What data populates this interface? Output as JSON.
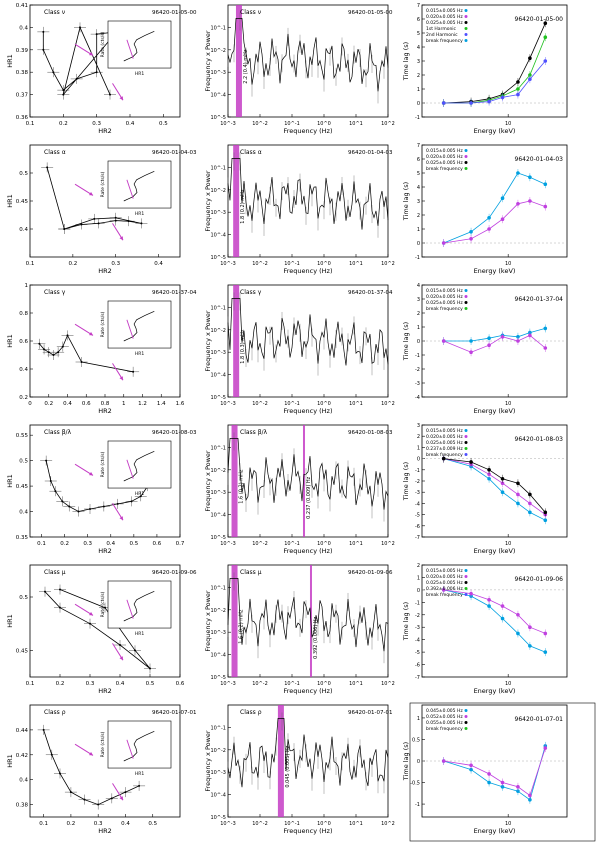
{
  "figure": {
    "col_labels": {
      "hr_x": "HR2",
      "hr_y": "HR1",
      "psd_x": "Frequency (Hz)",
      "psd_y": "Frequency x Power",
      "lag_x": "Energy (keV)",
      "lag_y": "Time lag (s)",
      "inset_y": "Rate (cts/s)",
      "inset_x": "HR1"
    },
    "rows": [
      {
        "obs": "96420-01-05-00",
        "class": "Class ν",
        "qpo_label": "2.2 (0.4) mHz",
        "lag_legend": [
          "0.015±0.005 Hz",
          "0.020±0.005 Hz",
          "0.025±0.005 Hz",
          "1st Harmonic",
          "2nd Harmonic",
          "break frequency"
        ]
      },
      {
        "obs": "96420-01-04-03",
        "class": "Class α",
        "qpo_label": "1.8 (0.2) mHz",
        "lag_legend": [
          "0.015±0.005 Hz",
          "0.020±0.005 Hz",
          "0.025±0.005 Hz",
          "break frequency"
        ]
      },
      {
        "obs": "96420-01-37-04",
        "class": "Class γ",
        "qpo_label": "1.8 (0.3) mHz",
        "lag_legend": [
          "0.015±0.005 Hz",
          "0.020±0.005 Hz",
          "0.025±0.005 Hz",
          "break frequency"
        ]
      },
      {
        "obs": "96420-01-08-03",
        "class": "Class β/λ",
        "qpo_label": "1.6 (0.2) mHz",
        "qpo2_label": "0.237 (0.009) Hz",
        "lag_legend": [
          "0.015±0.005 Hz",
          "0.020±0.005 Hz",
          "0.025±0.005 Hz",
          "0.237±0.009 Hz",
          "break frequency"
        ]
      },
      {
        "obs": "96420-01-09-06",
        "class": "Class μ",
        "qpo_label": "1.6 (0.2) mHz",
        "qpo2_label": "0.392 (0.006) Hz",
        "lag_legend": [
          "0.015±0.005 Hz",
          "0.020±0.005 Hz",
          "0.025±0.005 Hz",
          "0.392±0.006 Hz",
          "break frequency"
        ]
      },
      {
        "obs": "96420-01-07-01",
        "class": "Class ρ",
        "qpo_label": "0.045 (0.005) Hz",
        "lag_legend": [
          "0.045±0.005 Hz",
          "0.052±0.005 Hz",
          "0.055±0.005 Hz",
          "break frequency"
        ]
      }
    ]
  },
  "chart_data": [
    {
      "panel": "hr-ν",
      "type": "line",
      "title": "Class ν",
      "xlabel": "HR2",
      "ylabel": "HR1",
      "xlim": [
        0.1,
        0.55
      ],
      "ylim": [
        0.36,
        0.41
      ],
      "x_ticks": [
        0.1,
        0.2,
        0.3,
        0.4,
        0.5
      ],
      "y_ticks": [
        0.36,
        0.37,
        0.38,
        0.39,
        0.4,
        0.41
      ],
      "x": [
        0.14,
        0.14,
        0.17,
        0.2,
        0.24,
        0.3,
        0.3,
        0.36,
        0.2,
        0.25,
        0.34
      ],
      "y": [
        0.398,
        0.39,
        0.38,
        0.372,
        0.377,
        0.38,
        0.397,
        0.398,
        0.37,
        0.4,
        0.37
      ]
    },
    {
      "panel": "hr-α",
      "type": "line",
      "title": "Class α",
      "xlabel": "HR2",
      "ylabel": "HR1",
      "xlim": [
        0.1,
        0.45
      ],
      "ylim": [
        0.35,
        0.55
      ],
      "x_ticks": [
        0.1,
        0.2,
        0.3,
        0.4
      ],
      "y_ticks": [
        0.4,
        0.45,
        0.5
      ],
      "x": [
        0.14,
        0.18,
        0.22,
        0.26,
        0.3,
        0.33,
        0.36,
        0.3,
        0.25,
        0.18
      ],
      "y": [
        0.51,
        0.4,
        0.408,
        0.41,
        0.415,
        0.414,
        0.41,
        0.42,
        0.418,
        0.4
      ]
    },
    {
      "panel": "hr-γ",
      "type": "line",
      "title": "Class γ",
      "xlabel": "HR2",
      "ylabel": "HR1",
      "xlim": [
        0,
        1.6
      ],
      "ylim": [
        0.2,
        1
      ],
      "x_ticks": [
        0,
        0.2,
        0.4,
        0.6,
        0.8,
        1,
        1.2,
        1.4,
        1.6
      ],
      "y_ticks": [
        0.2,
        0.4,
        0.6,
        0.8,
        1
      ],
      "x": [
        0.1,
        0.15,
        0.2,
        0.25,
        0.3,
        0.35,
        0.4,
        0.55,
        1.1
      ],
      "y": [
        0.58,
        0.54,
        0.52,
        0.5,
        0.52,
        0.56,
        0.64,
        0.45,
        0.38
      ]
    },
    {
      "panel": "hr-β/λ",
      "type": "line",
      "title": "Class β/λ",
      "xlabel": "HR2",
      "ylabel": "HR1",
      "xlim": [
        0.05,
        0.7
      ],
      "ylim": [
        0.35,
        0.57
      ],
      "x_ticks": [
        0.1,
        0.2,
        0.3,
        0.4,
        0.5,
        0.6,
        0.7
      ],
      "y_ticks": [
        0.35,
        0.4,
        0.45,
        0.5,
        0.55
      ],
      "x": [
        0.12,
        0.14,
        0.16,
        0.19,
        0.22,
        0.26,
        0.31,
        0.37,
        0.43,
        0.49,
        0.53,
        0.56
      ],
      "y": [
        0.5,
        0.46,
        0.44,
        0.42,
        0.41,
        0.4,
        0.405,
        0.41,
        0.415,
        0.42,
        0.43,
        0.45
      ]
    },
    {
      "panel": "hr-μ",
      "type": "line",
      "title": "Class μ",
      "xlabel": "HR2",
      "ylabel": "HR1",
      "xlim": [
        0.1,
        0.6
      ],
      "ylim": [
        0.425,
        0.53
      ],
      "x_ticks": [
        0.1,
        0.2,
        0.3,
        0.4,
        0.5,
        0.6
      ],
      "y_ticks": [
        0.45,
        0.5
      ],
      "x": [
        0.15,
        0.2,
        0.3,
        0.4,
        0.5,
        0.45,
        0.35,
        0.2
      ],
      "y": [
        0.505,
        0.49,
        0.475,
        0.455,
        0.433,
        0.45,
        0.49,
        0.507
      ]
    },
    {
      "panel": "hr-ρ",
      "type": "line",
      "title": "Class ρ",
      "xlabel": "HR2",
      "ylabel": "HR1",
      "xlim": [
        0.05,
        0.6
      ],
      "ylim": [
        0.37,
        0.46
      ],
      "x_ticks": [
        0.1,
        0.2,
        0.3,
        0.4,
        0.5
      ],
      "y_ticks": [
        0.38,
        0.4,
        0.42,
        0.44
      ],
      "x": [
        0.1,
        0.13,
        0.16,
        0.2,
        0.25,
        0.3,
        0.35,
        0.4,
        0.45
      ],
      "y": [
        0.44,
        0.42,
        0.405,
        0.39,
        0.384,
        0.38,
        0.385,
        0.39,
        0.395
      ]
    },
    {
      "panel": "psd-all",
      "type": "line",
      "xlabel": "Frequency (Hz)",
      "ylabel": "Frequency x Power",
      "x_log": true,
      "xlim": [
        0.001,
        100
      ],
      "ylim_log": [
        1e-05,
        1
      ],
      "x_ticks": [
        0.001,
        0.01,
        0.1,
        1,
        10,
        100
      ],
      "y_ticks": [
        1e-05,
        0.0001,
        0.001,
        0.01,
        0.1
      ],
      "qpo_hz": [
        0.0022,
        0.0018,
        0.0018,
        0.0016,
        0.0016,
        0.045
      ],
      "qpo2_hz": [
        null,
        null,
        null,
        0.237,
        0.392,
        null
      ]
    },
    {
      "panel": "lag-ν",
      "type": "line",
      "xlabel": "Energy (keV)",
      "ylabel": "Time lag (s)",
      "xlim": [
        2,
        30
      ],
      "ylim": [
        -1,
        7
      ],
      "x_ticks": [
        10
      ],
      "x": [
        3,
        5,
        7,
        9,
        12,
        15,
        20
      ],
      "series": [
        {
          "name": "0.025±0.005 Hz",
          "values": [
            0,
            0.1,
            0.3,
            0.6,
            1.5,
            3.2,
            5.7
          ]
        },
        {
          "name": "0.020±0.005 Hz",
          "values": [
            0,
            0,
            0.2,
            0.5,
            1,
            2,
            4.7
          ]
        },
        {
          "name": "0.015±0.005 Hz",
          "values": [
            0,
            0,
            0.1,
            0.4,
            0.6,
            1.7,
            3
          ]
        }
      ]
    },
    {
      "panel": "lag-α",
      "type": "line",
      "xlabel": "Energy (keV)",
      "ylabel": "Time lag (s)",
      "xlim": [
        2,
        30
      ],
      "ylim": [
        -1,
        7
      ],
      "x_ticks": [
        10
      ],
      "x": [
        3,
        5,
        7,
        9,
        12,
        15,
        20
      ],
      "series": [
        {
          "name": "0.025±0.005 Hz",
          "values": [
            0,
            0.8,
            1.8,
            3.2,
            5,
            4.7,
            4.2
          ]
        },
        {
          "name": "0.020±0.005 Hz",
          "values": [
            0,
            0.3,
            1,
            1.7,
            2.8,
            3,
            2.6
          ]
        }
      ]
    },
    {
      "panel": "lag-γ",
      "type": "line",
      "xlabel": "Energy (keV)",
      "ylabel": "Time lag (s)",
      "xlim": [
        2,
        30
      ],
      "ylim": [
        -4,
        4
      ],
      "x_ticks": [
        10
      ],
      "x": [
        3,
        5,
        7,
        9,
        12,
        15,
        20
      ],
      "series": [
        {
          "name": "0.025±0.005 Hz",
          "values": [
            0,
            0,
            0.2,
            0.4,
            0.3,
            0.6,
            0.9
          ]
        },
        {
          "name": "0.015±0.005 Hz",
          "values": [
            0,
            -0.8,
            -0.3,
            0.3,
            0,
            0.4,
            -0.5
          ]
        }
      ]
    },
    {
      "panel": "lag-β/λ",
      "type": "line",
      "xlabel": "Energy (keV)",
      "ylabel": "Time lag (s)",
      "xlim": [
        2,
        30
      ],
      "ylim": [
        -7,
        3
      ],
      "x_ticks": [
        10
      ],
      "x": [
        3,
        5,
        7,
        9,
        12,
        15,
        20
      ],
      "series": [
        {
          "name": "0.025±0.005 Hz",
          "values": [
            0,
            -0.7,
            -1.8,
            -3,
            -4,
            -4.8,
            -5.5
          ]
        },
        {
          "name": "0.020±0.005 Hz",
          "values": [
            0,
            -0.5,
            -1.4,
            -2.2,
            -3.2,
            -4,
            -5
          ]
        },
        {
          "name": "0.015±0.005 Hz",
          "values": [
            0,
            -0.3,
            -1,
            -1.8,
            -2.2,
            -3.2,
            -4.8
          ]
        }
      ]
    },
    {
      "panel": "lag-μ",
      "type": "line",
      "xlabel": "Energy (keV)",
      "ylabel": "Time lag (s)",
      "xlim": [
        2,
        30
      ],
      "ylim": [
        -7,
        2
      ],
      "x_ticks": [
        10
      ],
      "x": [
        3,
        5,
        7,
        9,
        12,
        15,
        20
      ],
      "series": [
        {
          "name": "0.020±0.005 Hz",
          "values": [
            0,
            -0.5,
            -1.3,
            -2.3,
            -3.5,
            -4.5,
            -5
          ]
        },
        {
          "name": "0.025±0.005 Hz",
          "values": [
            0,
            -0.3,
            -0.8,
            -1.3,
            -2,
            -3,
            -3.5
          ]
        }
      ]
    },
    {
      "panel": "lag-ρ",
      "type": "line",
      "xlabel": "Energy (keV)",
      "ylabel": "Time lag (s)",
      "xlim": [
        2,
        30
      ],
      "ylim": [
        -1.3,
        1.3
      ],
      "x_ticks": [
        10
      ],
      "x": [
        3,
        5,
        7,
        9,
        12,
        15,
        20
      ],
      "series": [
        {
          "name": "0.045±0.005 Hz",
          "values": [
            0,
            -0.2,
            -0.5,
            -0.6,
            -0.7,
            -0.9,
            0.35
          ]
        },
        {
          "name": "0.052±0.005 Hz",
          "values": [
            0,
            -0.1,
            -0.3,
            -0.5,
            -0.6,
            -0.8,
            0.3
          ]
        }
      ]
    }
  ]
}
